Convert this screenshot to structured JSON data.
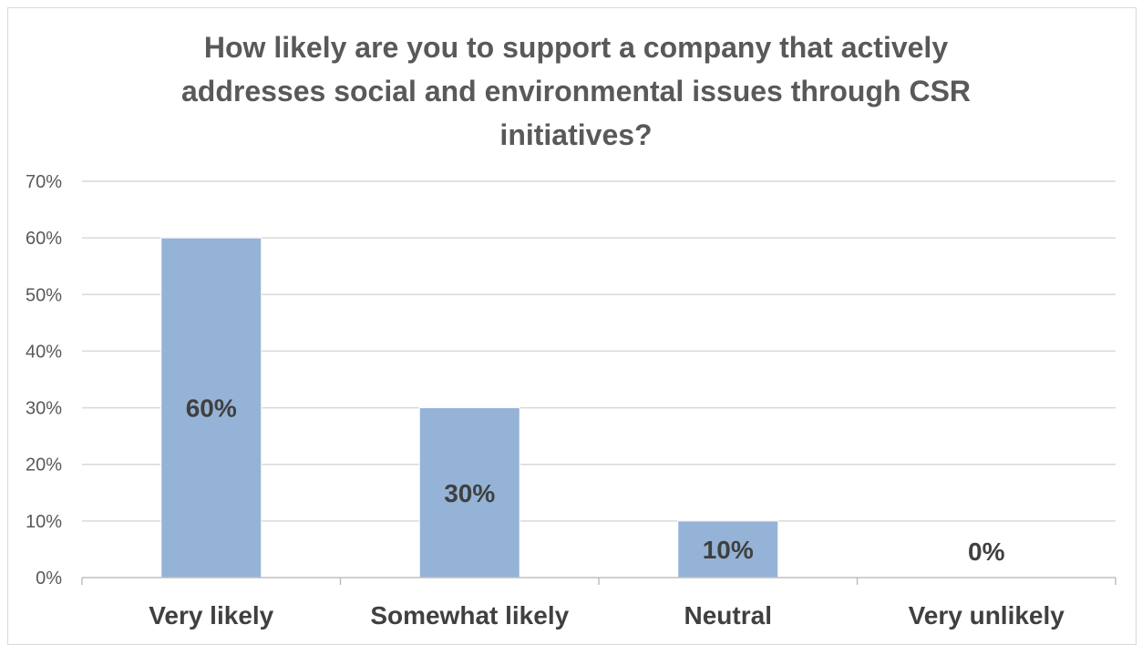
{
  "chart_data": {
    "type": "bar",
    "title_lines": [
      "How likely are you to support a company that actively",
      "addresses social and environmental issues through CSR",
      "initiatives?"
    ],
    "categories": [
      "Very likely",
      "Somewhat likely",
      "Neutral",
      "Very unlikely"
    ],
    "values": [
      60,
      30,
      10,
      0
    ],
    "data_labels": [
      "60%",
      "30%",
      "10%",
      "0%"
    ],
    "y_ticks": [
      "0%",
      "10%",
      "20%",
      "30%",
      "40%",
      "50%",
      "60%",
      "70%"
    ],
    "ylim": [
      0,
      70
    ],
    "grid": true,
    "legend": "none",
    "xlabel": "",
    "ylabel": "",
    "colors": {
      "bar": "#95b3d7",
      "grid": "#d9d9d9",
      "axis": "#bfbfbf",
      "title": "#595959",
      "label": "#404040"
    }
  }
}
